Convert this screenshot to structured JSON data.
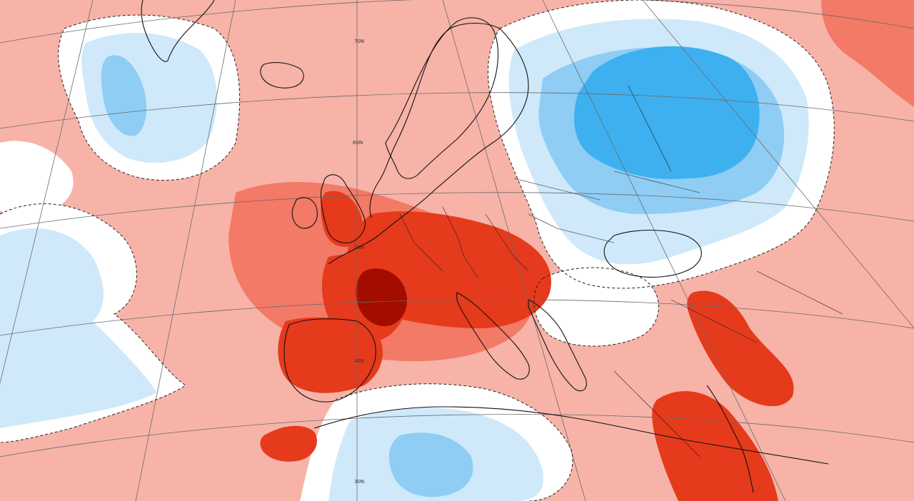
{
  "map": {
    "type": "temperature-anomaly",
    "colors": {
      "red_4": "#a30d00",
      "red_3": "#e63a1c",
      "red_2": "#f27a66",
      "red_1": "#f7b3a8",
      "neutral": "#ffffff",
      "blue_1": "#cfe9fa",
      "blue_2": "#8fcdf4",
      "blue_3": "#3eb0f0",
      "coastline": "#111111",
      "graticule": "#6a6a6a"
    },
    "latitude_labels": [
      "70N",
      "60N",
      "50N",
      "40N",
      "30N"
    ]
  }
}
